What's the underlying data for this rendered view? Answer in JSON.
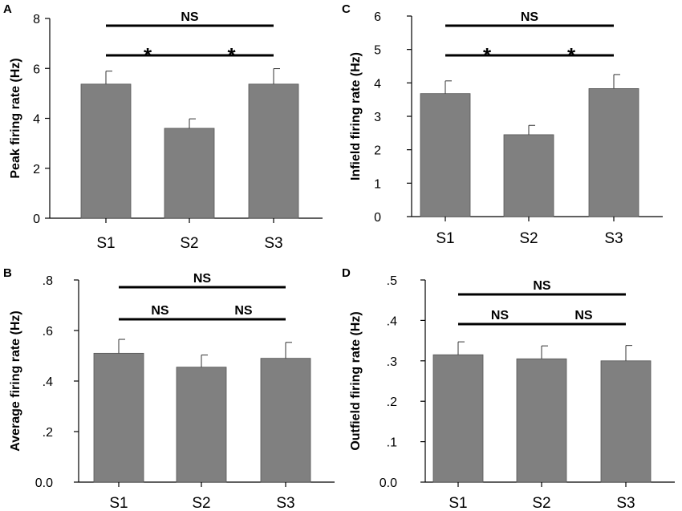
{
  "chart_data": [
    {
      "panel": "A",
      "type": "bar",
      "title": "",
      "xlabel": "",
      "ylabel": "Peak firing rate (Hz)",
      "categories": [
        "S1",
        "S2",
        "S3"
      ],
      "values": [
        5.37,
        3.6,
        5.37
      ],
      "errors": [
        0.52,
        0.38,
        0.62
      ],
      "ylim": [
        0,
        8
      ],
      "yticks": [
        0,
        2,
        4,
        6,
        8
      ],
      "ytick_labels": [
        "0",
        "2",
        "4",
        "6",
        "8"
      ],
      "bar_color": "#808080",
      "grid": false,
      "significance": [
        {
          "from": 0,
          "to": 2,
          "label": "NS",
          "level": 0
        },
        {
          "from": 0,
          "to": 1,
          "label": "*",
          "level": 1
        },
        {
          "from": 1,
          "to": 2,
          "label": "*",
          "level": 1
        }
      ]
    },
    {
      "panel": "B",
      "type": "bar",
      "title": "",
      "xlabel": "",
      "ylabel": "Average firing rate (Hz)",
      "categories": [
        "S1",
        "S2",
        "S3"
      ],
      "values": [
        0.51,
        0.455,
        0.49
      ],
      "errors": [
        0.055,
        0.048,
        0.063
      ],
      "ylim": [
        0,
        0.8
      ],
      "yticks": [
        0,
        0.2,
        0.4,
        0.6,
        0.8
      ],
      "ytick_labels": [
        "0.0",
        ".2",
        ".4",
        ".6",
        ".8"
      ],
      "bar_color": "#808080",
      "grid": false,
      "significance": [
        {
          "from": 0,
          "to": 2,
          "label": "NS",
          "level": 0
        },
        {
          "from": 0,
          "to": 1,
          "label": "NS",
          "level": 1
        },
        {
          "from": 1,
          "to": 2,
          "label": "NS",
          "level": 1
        }
      ]
    },
    {
      "panel": "C",
      "type": "bar",
      "title": "",
      "xlabel": "",
      "ylabel": "Infield firing rate (Hz)",
      "categories": [
        "S1",
        "S2",
        "S3"
      ],
      "values": [
        3.68,
        2.45,
        3.83
      ],
      "errors": [
        0.38,
        0.28,
        0.42
      ],
      "ylim": [
        0,
        6
      ],
      "yticks": [
        0,
        1,
        2,
        3,
        4,
        5,
        6
      ],
      "ytick_labels": [
        "0",
        "1",
        "2",
        "3",
        "4",
        "5",
        "6"
      ],
      "bar_color": "#808080",
      "grid": false,
      "significance": [
        {
          "from": 0,
          "to": 2,
          "label": "NS",
          "level": 0
        },
        {
          "from": 0,
          "to": 1,
          "label": "*",
          "level": 1
        },
        {
          "from": 1,
          "to": 2,
          "label": "*",
          "level": 1
        }
      ]
    },
    {
      "panel": "D",
      "type": "bar",
      "title": "",
      "xlabel": "",
      "ylabel": "Outfield firing rate (Hz)",
      "categories": [
        "S1",
        "S2",
        "S3"
      ],
      "values": [
        0.315,
        0.305,
        0.3
      ],
      "errors": [
        0.032,
        0.032,
        0.038
      ],
      "ylim": [
        0,
        0.5
      ],
      "yticks": [
        0,
        0.1,
        0.2,
        0.3,
        0.4,
        0.5
      ],
      "ytick_labels": [
        "0.0",
        ".1",
        ".2",
        ".3",
        ".4",
        ".5"
      ],
      "bar_color": "#808080",
      "grid": false,
      "significance": [
        {
          "from": 0,
          "to": 2,
          "label": "NS",
          "level": 0
        },
        {
          "from": 0,
          "to": 1,
          "label": "NS",
          "level": 1
        },
        {
          "from": 1,
          "to": 2,
          "label": "NS",
          "level": 1
        }
      ]
    }
  ]
}
